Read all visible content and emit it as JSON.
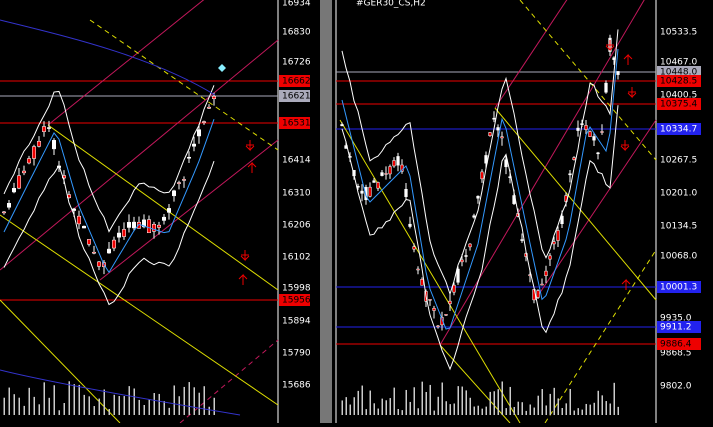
{
  "left_chart": {
    "price_labels": [
      "16934",
      "16830",
      "16726",
      "16414",
      "16310",
      "16206",
      "16102",
      "15998",
      "15894",
      "15790",
      "15686"
    ],
    "level_labels": [
      "16662",
      "16621",
      "16531",
      "15956"
    ]
  },
  "right_chart": {
    "title": "#GER30_CS,H2",
    "price_labels": [
      "10533.5",
      "10467.0",
      "10400.5",
      "10267.5",
      "10201.0",
      "10134.5",
      "10068.0",
      "9935.0",
      "9868.5",
      "9802.0"
    ],
    "level_labels": [
      "10448.0",
      "10428.5",
      "10375.4",
      "10334.7",
      "10001.3",
      "9911.2",
      "9886.4"
    ]
  }
}
